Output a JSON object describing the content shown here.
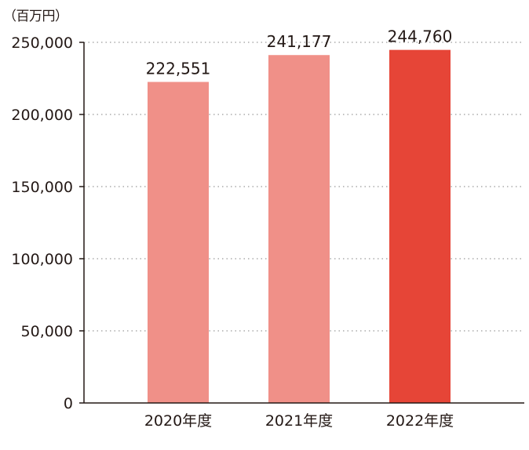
{
  "chart_data": {
    "type": "bar",
    "unit_label": "（百万円）",
    "categories": [
      "2020年度",
      "2021年度",
      "2022年度"
    ],
    "values": [
      222551,
      241177,
      244760
    ],
    "value_labels": [
      "222,551",
      "241,177",
      "244,760"
    ],
    "ylim": [
      0,
      250000
    ],
    "yticks": [
      0,
      50000,
      100000,
      150000,
      200000,
      250000
    ],
    "ytick_labels": [
      "0",
      "50,000",
      "100,000",
      "150,000",
      "200,000",
      "250,000"
    ],
    "grid": true,
    "colors": [
      "#f09088",
      "#f09088",
      "#e64537"
    ]
  }
}
